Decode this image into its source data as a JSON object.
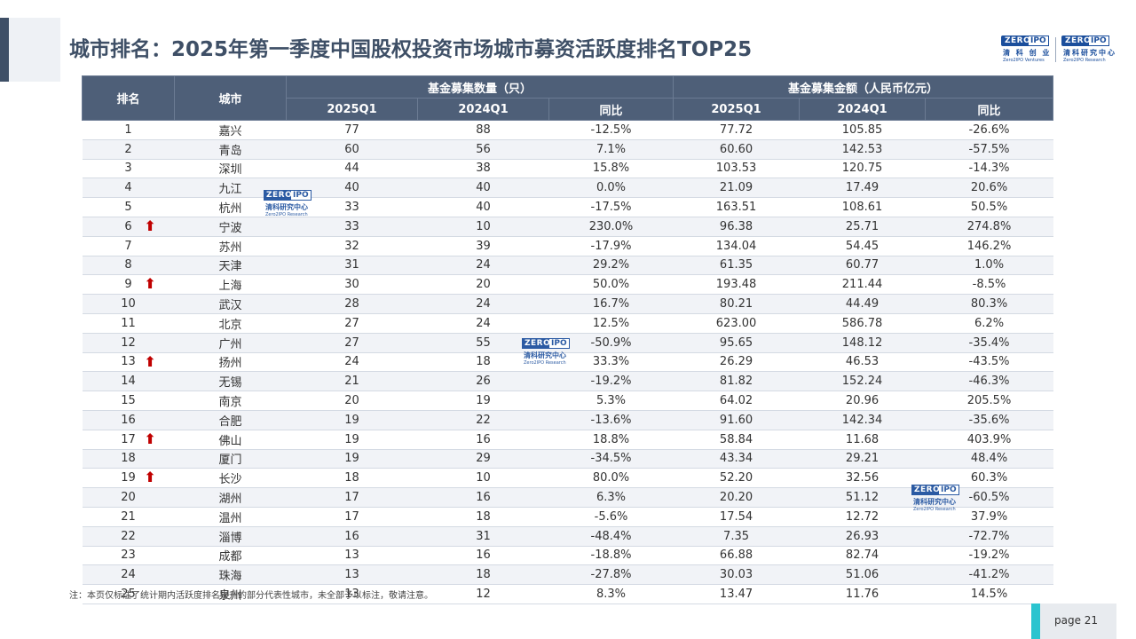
{
  "title": "城市排名：2025年第一季度中国股权投资市场城市募资活跃度排名TOP25",
  "logos": {
    "left": {
      "box": "ZERO",
      "box2": "IPO",
      "cn": "清 科 创 业",
      "en": "Zero2IPO Ventures"
    },
    "right": {
      "box": "ZERO",
      "box2": "IPO",
      "cn": "清科研究中心",
      "en": "Zero2IPO Research"
    }
  },
  "watermark": {
    "box": "ZERO",
    "box2": "IPO",
    "cn": "清科研究中心",
    "en": "Zero2IPO Research"
  },
  "table": {
    "header": {
      "rank": "排名",
      "city": "城市",
      "group_count": "基金募集数量（只）",
      "group_amount": "基金募集金额（人民币亿元）",
      "sub": [
        "2025Q1",
        "2024Q1",
        "同比",
        "2025Q1",
        "2024Q1",
        "同比"
      ]
    },
    "rows": [
      {
        "rank": "1",
        "city": "嘉兴",
        "up": false,
        "c25": "77",
        "c24": "88",
        "cyoy": "-12.5%",
        "a25": "77.72",
        "a24": "105.85",
        "ayoy": "-26.6%"
      },
      {
        "rank": "2",
        "city": "青岛",
        "up": false,
        "c25": "60",
        "c24": "56",
        "cyoy": "7.1%",
        "a25": "60.60",
        "a24": "142.53",
        "ayoy": "-57.5%"
      },
      {
        "rank": "3",
        "city": "深圳",
        "up": false,
        "c25": "44",
        "c24": "38",
        "cyoy": "15.8%",
        "a25": "103.53",
        "a24": "120.75",
        "ayoy": "-14.3%"
      },
      {
        "rank": "4",
        "city": "九江",
        "up": false,
        "c25": "40",
        "c24": "40",
        "cyoy": "0.0%",
        "a25": "21.09",
        "a24": "17.49",
        "ayoy": "20.6%"
      },
      {
        "rank": "5",
        "city": "杭州",
        "up": false,
        "c25": "33",
        "c24": "40",
        "cyoy": "-17.5%",
        "a25": "163.51",
        "a24": "108.61",
        "ayoy": "50.5%"
      },
      {
        "rank": "6",
        "city": "宁波",
        "up": true,
        "c25": "33",
        "c24": "10",
        "cyoy": "230.0%",
        "a25": "96.38",
        "a24": "25.71",
        "ayoy": "274.8%"
      },
      {
        "rank": "7",
        "city": "苏州",
        "up": false,
        "c25": "32",
        "c24": "39",
        "cyoy": "-17.9%",
        "a25": "134.04",
        "a24": "54.45",
        "ayoy": "146.2%"
      },
      {
        "rank": "8",
        "city": "天津",
        "up": false,
        "c25": "31",
        "c24": "24",
        "cyoy": "29.2%",
        "a25": "61.35",
        "a24": "60.77",
        "ayoy": "1.0%"
      },
      {
        "rank": "9",
        "city": "上海",
        "up": true,
        "c25": "30",
        "c24": "20",
        "cyoy": "50.0%",
        "a25": "193.48",
        "a24": "211.44",
        "ayoy": "-8.5%"
      },
      {
        "rank": "10",
        "city": "武汉",
        "up": false,
        "c25": "28",
        "c24": "24",
        "cyoy": "16.7%",
        "a25": "80.21",
        "a24": "44.49",
        "ayoy": "80.3%"
      },
      {
        "rank": "11",
        "city": "北京",
        "up": false,
        "c25": "27",
        "c24": "24",
        "cyoy": "12.5%",
        "a25": "623.00",
        "a24": "586.78",
        "ayoy": "6.2%"
      },
      {
        "rank": "12",
        "city": "广州",
        "up": false,
        "c25": "27",
        "c24": "55",
        "cyoy": "-50.9%",
        "a25": "95.65",
        "a24": "148.12",
        "ayoy": "-35.4%"
      },
      {
        "rank": "13",
        "city": "扬州",
        "up": true,
        "c25": "24",
        "c24": "18",
        "cyoy": "33.3%",
        "a25": "26.29",
        "a24": "46.53",
        "ayoy": "-43.5%"
      },
      {
        "rank": "14",
        "city": "无锡",
        "up": false,
        "c25": "21",
        "c24": "26",
        "cyoy": "-19.2%",
        "a25": "81.82",
        "a24": "152.24",
        "ayoy": "-46.3%"
      },
      {
        "rank": "15",
        "city": "南京",
        "up": false,
        "c25": "20",
        "c24": "19",
        "cyoy": "5.3%",
        "a25": "64.02",
        "a24": "20.96",
        "ayoy": "205.5%"
      },
      {
        "rank": "16",
        "city": "合肥",
        "up": false,
        "c25": "19",
        "c24": "22",
        "cyoy": "-13.6%",
        "a25": "91.60",
        "a24": "142.34",
        "ayoy": "-35.6%"
      },
      {
        "rank": "17",
        "city": "佛山",
        "up": true,
        "c25": "19",
        "c24": "16",
        "cyoy": "18.8%",
        "a25": "58.84",
        "a24": "11.68",
        "ayoy": "403.9%"
      },
      {
        "rank": "18",
        "city": "厦门",
        "up": false,
        "c25": "19",
        "c24": "29",
        "cyoy": "-34.5%",
        "a25": "43.34",
        "a24": "29.21",
        "ayoy": "48.4%"
      },
      {
        "rank": "19",
        "city": "长沙",
        "up": true,
        "c25": "18",
        "c24": "10",
        "cyoy": "80.0%",
        "a25": "52.20",
        "a24": "32.56",
        "ayoy": "60.3%"
      },
      {
        "rank": "20",
        "city": "湖州",
        "up": false,
        "c25": "17",
        "c24": "16",
        "cyoy": "6.3%",
        "a25": "20.20",
        "a24": "51.12",
        "ayoy": "-60.5%"
      },
      {
        "rank": "21",
        "city": "温州",
        "up": false,
        "c25": "17",
        "c24": "18",
        "cyoy": "-5.6%",
        "a25": "17.54",
        "a24": "12.72",
        "ayoy": "37.9%"
      },
      {
        "rank": "22",
        "city": "淄博",
        "up": false,
        "c25": "16",
        "c24": "31",
        "cyoy": "-48.4%",
        "a25": "7.35",
        "a24": "26.93",
        "ayoy": "-72.7%"
      },
      {
        "rank": "23",
        "city": "成都",
        "up": false,
        "c25": "13",
        "c24": "16",
        "cyoy": "-18.8%",
        "a25": "66.88",
        "a24": "82.74",
        "ayoy": "-19.2%"
      },
      {
        "rank": "24",
        "city": "珠海",
        "up": false,
        "c25": "13",
        "c24": "18",
        "cyoy": "-27.8%",
        "a25": "30.03",
        "a24": "51.06",
        "ayoy": "-41.2%"
      },
      {
        "rank": "25",
        "city": "泉州",
        "up": false,
        "c25": "13",
        "c24": "12",
        "cyoy": "8.3%",
        "a25": "13.47",
        "a24": "11.76",
        "ayoy": "14.5%"
      }
    ]
  },
  "up_arrow_icon": "arrow-up-icon",
  "up_arrow_color": "#c00000",
  "header_color": "#4e5f78",
  "footnote": "注：本页仅标注了统计期内活跃度排名提升的部分代表性城市，未全部予以标注，敬请注意。",
  "page": "page  21"
}
